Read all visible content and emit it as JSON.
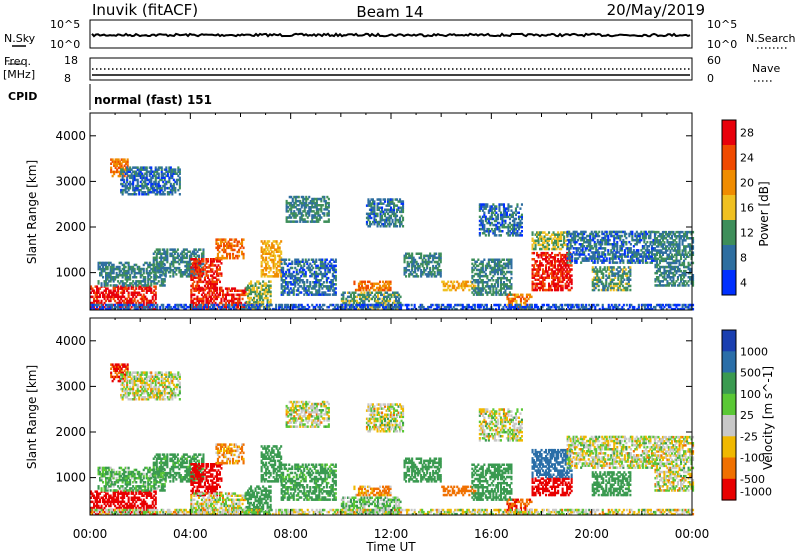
{
  "header": {
    "station": "Inuvik (fitACF)",
    "beam": "Beam 14",
    "date": "20/May/2019"
  },
  "top_panels": {
    "nsky_label": "N.Sky",
    "nsky_ticks": [
      "10^5",
      "10^0"
    ],
    "nsearch_label": "N.Search",
    "nsearch_ticks": [
      "10^5",
      "10^0"
    ],
    "freq_label_1": "Freq.",
    "freq_label_2": "[MHz]",
    "freq_ticks": [
      "18",
      "8"
    ],
    "nave_label": "Nave",
    "nave_ticks": [
      "60",
      "0"
    ],
    "cpid_label": "CPID",
    "cpid_text": "normal (fast) 151"
  },
  "chart_data": [
    {
      "type": "heatmap",
      "title": "",
      "ylabel": "Slant Range [km]",
      "xlabel": "",
      "ylim": [
        180,
        4500
      ],
      "yticks": [
        1000,
        2000,
        3000,
        4000
      ],
      "x_ticks": [
        "00:00",
        "04:00",
        "08:00",
        "12:00",
        "16:00",
        "20:00",
        "00:00"
      ],
      "colorbar": {
        "label": "Power [dB]",
        "ticks": [
          "28",
          "24",
          "20",
          "16",
          "12",
          "8",
          "4"
        ],
        "colors": [
          "#e8000b",
          "#f04a00",
          "#f08c00",
          "#f0c020",
          "#3e8e5a",
          "#2e6ea0",
          "#0030ff"
        ]
      },
      "regions": [
        {
          "t0": 0.0,
          "t1": 2.6,
          "r0": 180,
          "r1": 700,
          "v": 28
        },
        {
          "t0": 0.3,
          "t1": 3.0,
          "r0": 700,
          "r1": 1200,
          "v": 10
        },
        {
          "t0": 0.8,
          "t1": 1.5,
          "r0": 3100,
          "r1": 3500,
          "v": 22
        },
        {
          "t0": 1.2,
          "t1": 3.6,
          "r0": 2700,
          "r1": 3300,
          "v": 8
        },
        {
          "t0": 2.5,
          "t1": 4.5,
          "r0": 900,
          "r1": 1500,
          "v": 10
        },
        {
          "t0": 4.0,
          "t1": 5.2,
          "r0": 600,
          "r1": 1300,
          "v": 26
        },
        {
          "t0": 4.0,
          "t1": 6.2,
          "r0": 180,
          "r1": 650,
          "v": 27
        },
        {
          "t0": 5.0,
          "t1": 6.1,
          "r0": 1300,
          "r1": 1750,
          "v": 22
        },
        {
          "t0": 6.2,
          "t1": 7.2,
          "r0": 200,
          "r1": 800,
          "v": 14
        },
        {
          "t0": 6.8,
          "t1": 7.6,
          "r0": 900,
          "r1": 1700,
          "v": 18
        },
        {
          "t0": 7.8,
          "t1": 9.5,
          "r0": 2100,
          "r1": 2650,
          "v": 10
        },
        {
          "t0": 7.6,
          "t1": 9.8,
          "r0": 500,
          "r1": 1300,
          "v": 8
        },
        {
          "t0": 10.0,
          "t1": 12.4,
          "r0": 180,
          "r1": 550,
          "v": 12
        },
        {
          "t0": 10.5,
          "t1": 12.0,
          "r0": 600,
          "r1": 800,
          "v": 22
        },
        {
          "t0": 11.0,
          "t1": 12.5,
          "r0": 2000,
          "r1": 2600,
          "v": 9
        },
        {
          "t0": 12.5,
          "t1": 14.0,
          "r0": 900,
          "r1": 1400,
          "v": 10
        },
        {
          "t0": 14.0,
          "t1": 15.4,
          "r0": 600,
          "r1": 800,
          "v": 18
        },
        {
          "t0": 15.2,
          "t1": 16.8,
          "r0": 500,
          "r1": 1300,
          "v": 10
        },
        {
          "t0": 16.6,
          "t1": 17.6,
          "r0": 180,
          "r1": 500,
          "v": 20
        },
        {
          "t0": 15.5,
          "t1": 17.2,
          "r0": 1800,
          "r1": 2500,
          "v": 8
        },
        {
          "t0": 17.6,
          "t1": 19.2,
          "r0": 600,
          "r1": 1450,
          "v": 27
        },
        {
          "t0": 17.6,
          "t1": 19.0,
          "r0": 1500,
          "r1": 1900,
          "v": 14
        },
        {
          "t0": 19.0,
          "t1": 22.5,
          "r0": 1200,
          "r1": 1900,
          "v": 8
        },
        {
          "t0": 20.0,
          "t1": 21.5,
          "r0": 600,
          "r1": 1100,
          "v": 12
        },
        {
          "t0": 22.5,
          "t1": 24.0,
          "r0": 700,
          "r1": 1900,
          "v": 10
        },
        {
          "t0": 0.0,
          "t1": 24.0,
          "r0": 180,
          "r1": 280,
          "v": 6
        }
      ]
    },
    {
      "type": "heatmap",
      "title": "",
      "ylabel": "Slant Range [km]",
      "xlabel": "Time UT",
      "ylim": [
        180,
        4500
      ],
      "yticks": [
        1000,
        2000,
        3000,
        4000
      ],
      "x_ticks": [
        "00:00",
        "04:00",
        "08:00",
        "12:00",
        "16:00",
        "20:00",
        "00:00"
      ],
      "colorbar": {
        "label": "Velocity [m s^-1]",
        "ticks": [
          "1000",
          "500",
          "100",
          "25",
          "-25",
          "-100",
          "-500",
          "-1000"
        ],
        "colors": [
          "#1a3fb0",
          "#2a6ea8",
          "#3a9a50",
          "#5ac835",
          "#c8c8c8",
          "#f0b800",
          "#f07000",
          "#e80000"
        ]
      },
      "regions": [
        {
          "t0": 0.0,
          "t1": 2.6,
          "r0": 180,
          "r1": 700,
          "v": -400
        },
        {
          "t0": 0.3,
          "t1": 3.0,
          "r0": 700,
          "r1": 1200,
          "v": 80
        },
        {
          "t0": 0.8,
          "t1": 1.5,
          "r0": 3100,
          "r1": 3500,
          "v": -300
        },
        {
          "t0": 1.2,
          "t1": 3.6,
          "r0": 2700,
          "r1": 3300,
          "v": 0
        },
        {
          "t0": 2.5,
          "t1": 4.5,
          "r0": 900,
          "r1": 1500,
          "v": 120
        },
        {
          "t0": 4.0,
          "t1": 5.2,
          "r0": 600,
          "r1": 1300,
          "v": -400
        },
        {
          "t0": 4.0,
          "t1": 6.2,
          "r0": 180,
          "r1": 650,
          "v": 0
        },
        {
          "t0": 5.0,
          "t1": 6.1,
          "r0": 1300,
          "r1": 1750,
          "v": -80
        },
        {
          "t0": 6.2,
          "t1": 7.2,
          "r0": 200,
          "r1": 800,
          "v": 150
        },
        {
          "t0": 6.8,
          "t1": 7.6,
          "r0": 900,
          "r1": 1700,
          "v": 200
        },
        {
          "t0": 7.8,
          "t1": 9.5,
          "r0": 2100,
          "r1": 2650,
          "v": 0
        },
        {
          "t0": 7.6,
          "t1": 9.8,
          "r0": 500,
          "r1": 1300,
          "v": 110
        },
        {
          "t0": 10.0,
          "t1": 12.4,
          "r0": 180,
          "r1": 550,
          "v": 60
        },
        {
          "t0": 10.5,
          "t1": 12.0,
          "r0": 600,
          "r1": 800,
          "v": -80
        },
        {
          "t0": 11.0,
          "t1": 12.5,
          "r0": 2000,
          "r1": 2600,
          "v": 0
        },
        {
          "t0": 12.5,
          "t1": 14.0,
          "r0": 900,
          "r1": 1400,
          "v": 200
        },
        {
          "t0": 14.0,
          "t1": 15.4,
          "r0": 600,
          "r1": 800,
          "v": -200
        },
        {
          "t0": 15.2,
          "t1": 16.8,
          "r0": 500,
          "r1": 1300,
          "v": 150
        },
        {
          "t0": 16.6,
          "t1": 17.6,
          "r0": 180,
          "r1": 500,
          "v": -300
        },
        {
          "t0": 15.5,
          "t1": 17.2,
          "r0": 1800,
          "r1": 2500,
          "v": 0
        },
        {
          "t0": 17.6,
          "t1": 19.2,
          "r0": 600,
          "r1": 1000,
          "v": -500
        },
        {
          "t0": 17.6,
          "t1": 19.2,
          "r0": 1000,
          "r1": 1600,
          "v": 600
        },
        {
          "t0": 19.0,
          "t1": 22.5,
          "r0": 1200,
          "r1": 1900,
          "v": 0
        },
        {
          "t0": 20.0,
          "t1": 21.5,
          "r0": 600,
          "r1": 1100,
          "v": 130
        },
        {
          "t0": 22.5,
          "t1": 24.0,
          "r0": 700,
          "r1": 1900,
          "v": 0
        },
        {
          "t0": 0.0,
          "t1": 24.0,
          "r0": 180,
          "r1": 280,
          "v": 0
        }
      ]
    }
  ]
}
